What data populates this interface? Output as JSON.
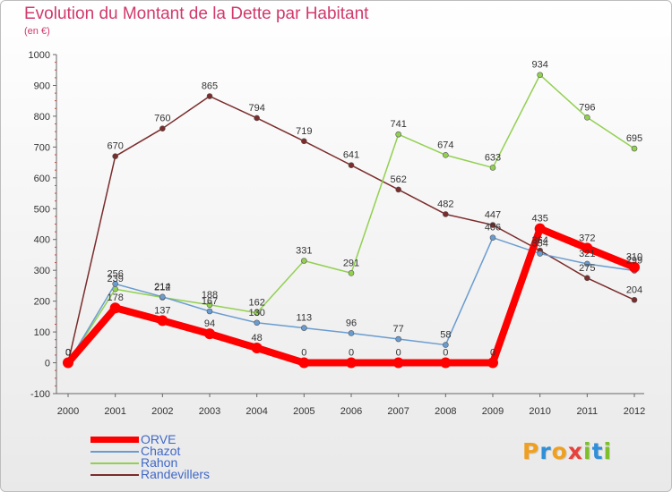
{
  "title": "Evolution du Montant de la Dette par Habitant",
  "subtitle": "(en €)",
  "logo": {
    "text": "Proxiti",
    "letter_colors": [
      "#f0a020",
      "#2f8fd8",
      "#f0a020",
      "#e8403a",
      "#7dbf2a",
      "#2f8fd8",
      "#7dbf2a"
    ]
  },
  "chart_data": {
    "type": "line",
    "x": [
      "2000",
      "2001",
      "2002",
      "2003",
      "2004",
      "2005",
      "2006",
      "2007",
      "2008",
      "2009",
      "2010",
      "2011",
      "2012"
    ],
    "ylim": [
      -100,
      1000
    ],
    "yticks": [
      -100,
      0,
      100,
      200,
      300,
      400,
      500,
      600,
      700,
      800,
      900,
      1000
    ],
    "grid": false,
    "legend_position": "bottom-left",
    "series": [
      {
        "name": "ORVE",
        "color": "#ff0000",
        "values": [
          0,
          178,
          137,
          94,
          48,
          0,
          0,
          0,
          0,
          0,
          435,
          372,
          310
        ]
      },
      {
        "name": "Chazot",
        "color": "#6a9cd0",
        "values": [
          0,
          256,
          214,
          167,
          130,
          113,
          96,
          77,
          58,
          406,
          354,
          321,
          299
        ]
      },
      {
        "name": "Rahon",
        "color": "#92d050",
        "values": [
          0,
          239,
          212,
          188,
          162,
          331,
          291,
          741,
          674,
          633,
          934,
          796,
          695
        ]
      },
      {
        "name": "Randevillers",
        "color": "#7b2c2c",
        "values": [
          0,
          670,
          760,
          865,
          794,
          719,
          641,
          562,
          482,
          447,
          364,
          275,
          204
        ]
      }
    ]
  }
}
